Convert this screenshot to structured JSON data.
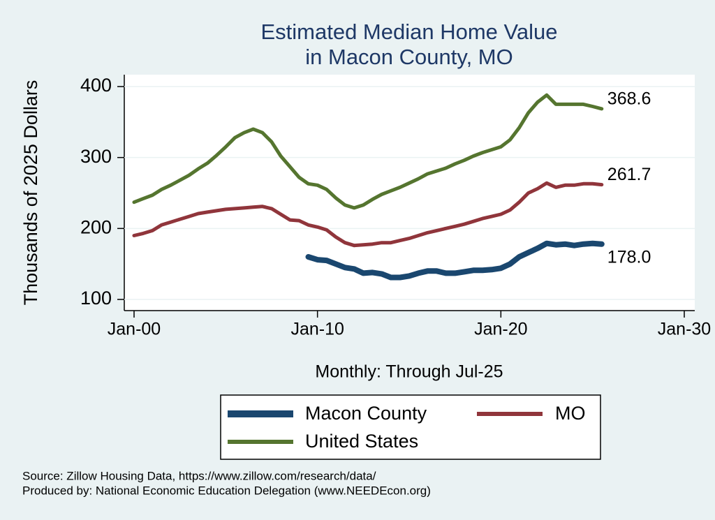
{
  "chart_data": {
    "type": "line",
    "title": [
      "Estimated Median Home Value",
      "in Macon County, MO"
    ],
    "ylabel": "Thousands of 2025 Dollars",
    "xlabel": "Monthly: Through Jul-25",
    "notes": [
      "Source: Zillow Housing Data, https://www.zillow.com/research/data/",
      "Produced by: National Economic Education Delegation (www.NEEDEcon.org)"
    ],
    "x": [
      "Jan-00",
      "Jul-00",
      "Jan-01",
      "Jul-01",
      "Jan-02",
      "Jul-02",
      "Jan-03",
      "Jul-03",
      "Jan-04",
      "Jul-04",
      "Jan-05",
      "Jul-05",
      "Jan-06",
      "Jul-06",
      "Jan-07",
      "Jul-07",
      "Jan-08",
      "Jul-08",
      "Jan-09",
      "Jul-09",
      "Jan-10",
      "Jul-10",
      "Jan-11",
      "Jul-11",
      "Jan-12",
      "Jul-12",
      "Jan-13",
      "Jul-13",
      "Jan-14",
      "Jul-14",
      "Jan-15",
      "Jul-15",
      "Jan-16",
      "Jul-16",
      "Jan-17",
      "Jul-17",
      "Jan-18",
      "Jul-18",
      "Jan-19",
      "Jul-19",
      "Jan-20",
      "Jul-20",
      "Jan-21",
      "Jul-21",
      "Jan-22",
      "Jul-22",
      "Jan-23",
      "Jul-23",
      "Jan-24",
      "Jul-24",
      "Jan-25",
      "Jul-25"
    ],
    "series": [
      {
        "name": "Macon County",
        "color": "#1a476f",
        "values": [
          null,
          null,
          null,
          null,
          null,
          null,
          null,
          null,
          null,
          null,
          null,
          null,
          null,
          null,
          null,
          null,
          null,
          null,
          null,
          160,
          156,
          155,
          150,
          145,
          143,
          137,
          138,
          136,
          131,
          131,
          133,
          137,
          140,
          140,
          137,
          137,
          139,
          141,
          141,
          142,
          144,
          150,
          160,
          166,
          172,
          179,
          177,
          178,
          176,
          178,
          179,
          178.0
        ],
        "value_labels": [
          null,
          null,
          null,
          null,
          null,
          null,
          null,
          null,
          null,
          null,
          null,
          null,
          null,
          null,
          null,
          null,
          null,
          null,
          null,
          null,
          null,
          null,
          null,
          null,
          null,
          null,
          null,
          null,
          null,
          null,
          null,
          null,
          null,
          null,
          null,
          null,
          null,
          null,
          null,
          null,
          null,
          null,
          null,
          null,
          null,
          null,
          null,
          null,
          null,
          null,
          null,
          "178.0"
        ]
      },
      {
        "name": "MO",
        "color": "#90353b",
        "values": [
          190,
          193,
          197,
          205,
          209,
          213,
          217,
          221,
          223,
          225,
          227,
          228,
          229,
          230,
          231,
          228,
          220,
          212,
          211,
          205,
          202,
          198,
          188,
          180,
          176,
          177,
          178,
          180,
          180,
          183,
          186,
          190,
          194,
          197,
          200,
          203,
          206,
          210,
          214,
          217,
          220,
          226,
          237,
          250,
          256,
          264,
          258,
          261,
          261,
          263,
          263,
          261.7
        ]
      },
      {
        "name": "United States",
        "color": "#55752f",
        "values": [
          237,
          242,
          247,
          255,
          261,
          268,
          275,
          284,
          292,
          303,
          315,
          328,
          335,
          340,
          335,
          322,
          302,
          287,
          272,
          263,
          261,
          255,
          243,
          233,
          229,
          233,
          241,
          248,
          253,
          258,
          264,
          270,
          277,
          281,
          285,
          291,
          296,
          302,
          307,
          311,
          315,
          325,
          342,
          363,
          378,
          388,
          375,
          375,
          375,
          375,
          372,
          368.6
        ]
      }
    ],
    "xlim": [
      "Jan-00",
      "Jan-30"
    ],
    "xticks": [
      "Jan-00",
      "Jan-10",
      "Jan-20",
      "Jan-30"
    ],
    "ylim": [
      100,
      400
    ],
    "yticks": [
      100,
      200,
      300,
      400
    ],
    "grid": true
  }
}
